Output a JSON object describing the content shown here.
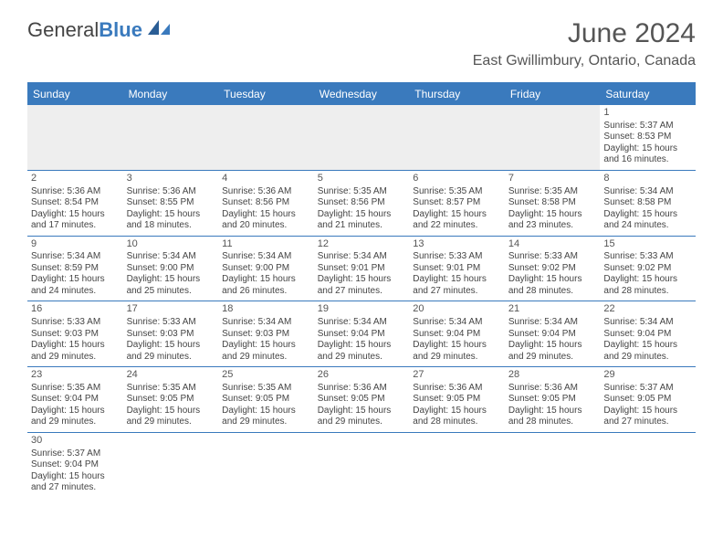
{
  "brand": {
    "part1": "General",
    "part2": "Blue"
  },
  "title": "June 2024",
  "location": "East Gwillimbury, Ontario, Canada",
  "colors": {
    "header_bg": "#3a7abd",
    "header_text": "#ffffff",
    "blank_bg": "#eeeeee",
    "cell_border": "#3a7abd",
    "text": "#444444"
  },
  "day_names": [
    "Sunday",
    "Monday",
    "Tuesday",
    "Wednesday",
    "Thursday",
    "Friday",
    "Saturday"
  ],
  "weeks": [
    [
      null,
      null,
      null,
      null,
      null,
      null,
      {
        "n": "1",
        "sr": "5:37 AM",
        "ss": "8:53 PM",
        "dh": "15",
        "dm": "16"
      }
    ],
    [
      {
        "n": "2",
        "sr": "5:36 AM",
        "ss": "8:54 PM",
        "dh": "15",
        "dm": "17"
      },
      {
        "n": "3",
        "sr": "5:36 AM",
        "ss": "8:55 PM",
        "dh": "15",
        "dm": "18"
      },
      {
        "n": "4",
        "sr": "5:36 AM",
        "ss": "8:56 PM",
        "dh": "15",
        "dm": "20"
      },
      {
        "n": "5",
        "sr": "5:35 AM",
        "ss": "8:56 PM",
        "dh": "15",
        "dm": "21"
      },
      {
        "n": "6",
        "sr": "5:35 AM",
        "ss": "8:57 PM",
        "dh": "15",
        "dm": "22"
      },
      {
        "n": "7",
        "sr": "5:35 AM",
        "ss": "8:58 PM",
        "dh": "15",
        "dm": "23"
      },
      {
        "n": "8",
        "sr": "5:34 AM",
        "ss": "8:58 PM",
        "dh": "15",
        "dm": "24"
      }
    ],
    [
      {
        "n": "9",
        "sr": "5:34 AM",
        "ss": "8:59 PM",
        "dh": "15",
        "dm": "24"
      },
      {
        "n": "10",
        "sr": "5:34 AM",
        "ss": "9:00 PM",
        "dh": "15",
        "dm": "25"
      },
      {
        "n": "11",
        "sr": "5:34 AM",
        "ss": "9:00 PM",
        "dh": "15",
        "dm": "26"
      },
      {
        "n": "12",
        "sr": "5:34 AM",
        "ss": "9:01 PM",
        "dh": "15",
        "dm": "27"
      },
      {
        "n": "13",
        "sr": "5:33 AM",
        "ss": "9:01 PM",
        "dh": "15",
        "dm": "27"
      },
      {
        "n": "14",
        "sr": "5:33 AM",
        "ss": "9:02 PM",
        "dh": "15",
        "dm": "28"
      },
      {
        "n": "15",
        "sr": "5:33 AM",
        "ss": "9:02 PM",
        "dh": "15",
        "dm": "28"
      }
    ],
    [
      {
        "n": "16",
        "sr": "5:33 AM",
        "ss": "9:03 PM",
        "dh": "15",
        "dm": "29"
      },
      {
        "n": "17",
        "sr": "5:33 AM",
        "ss": "9:03 PM",
        "dh": "15",
        "dm": "29"
      },
      {
        "n": "18",
        "sr": "5:34 AM",
        "ss": "9:03 PM",
        "dh": "15",
        "dm": "29"
      },
      {
        "n": "19",
        "sr": "5:34 AM",
        "ss": "9:04 PM",
        "dh": "15",
        "dm": "29"
      },
      {
        "n": "20",
        "sr": "5:34 AM",
        "ss": "9:04 PM",
        "dh": "15",
        "dm": "29"
      },
      {
        "n": "21",
        "sr": "5:34 AM",
        "ss": "9:04 PM",
        "dh": "15",
        "dm": "29"
      },
      {
        "n": "22",
        "sr": "5:34 AM",
        "ss": "9:04 PM",
        "dh": "15",
        "dm": "29"
      }
    ],
    [
      {
        "n": "23",
        "sr": "5:35 AM",
        "ss": "9:04 PM",
        "dh": "15",
        "dm": "29"
      },
      {
        "n": "24",
        "sr": "5:35 AM",
        "ss": "9:05 PM",
        "dh": "15",
        "dm": "29"
      },
      {
        "n": "25",
        "sr": "5:35 AM",
        "ss": "9:05 PM",
        "dh": "15",
        "dm": "29"
      },
      {
        "n": "26",
        "sr": "5:36 AM",
        "ss": "9:05 PM",
        "dh": "15",
        "dm": "29"
      },
      {
        "n": "27",
        "sr": "5:36 AM",
        "ss": "9:05 PM",
        "dh": "15",
        "dm": "28"
      },
      {
        "n": "28",
        "sr": "5:36 AM",
        "ss": "9:05 PM",
        "dh": "15",
        "dm": "28"
      },
      {
        "n": "29",
        "sr": "5:37 AM",
        "ss": "9:05 PM",
        "dh": "15",
        "dm": "27"
      }
    ],
    [
      {
        "n": "30",
        "sr": "5:37 AM",
        "ss": "9:04 PM",
        "dh": "15",
        "dm": "27"
      },
      null,
      null,
      null,
      null,
      null,
      null
    ]
  ],
  "labels": {
    "sunrise": "Sunrise:",
    "sunset": "Sunset:",
    "daylight_a": "Daylight:",
    "hours": "hours",
    "and": "and",
    "minutes": "minutes."
  }
}
